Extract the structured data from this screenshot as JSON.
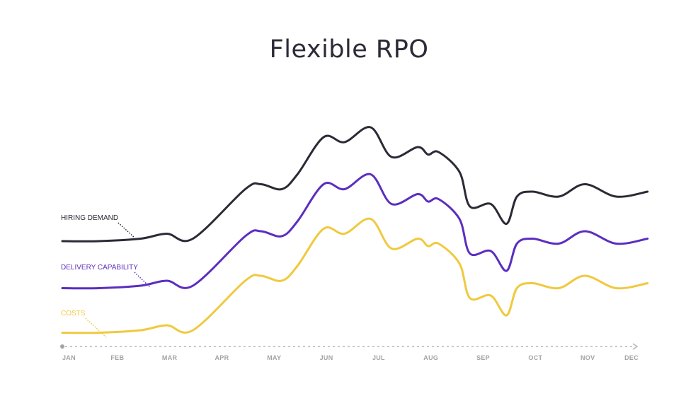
{
  "chart_data": {
    "type": "line",
    "title": "Flexible RPO",
    "categories": [
      "JAN",
      "FEB",
      "MAR",
      "APR",
      "MAY",
      "JUN",
      "JUL",
      "AUG",
      "SEP",
      "OCT",
      "NOV",
      "DEC"
    ],
    "ylim": [
      0,
      100
    ],
    "grid": false,
    "series": [
      {
        "name": "HIRING DEMAND",
        "color": "#2b2a36",
        "x": [
          0,
          0.7,
          1.5,
          2,
          2.5,
          3.5,
          3.8,
          4.2,
          4.5,
          5.0,
          5.4,
          5.9,
          6.3,
          6.8,
          7.0,
          7.2,
          7.6,
          7.8,
          8.2,
          8.5,
          8.7,
          9.0,
          9.5,
          10.0,
          10.6,
          11.2
        ],
        "y": [
          40,
          40,
          41,
          43,
          41,
          61,
          63,
          61,
          67,
          82,
          80,
          86,
          74,
          78,
          75,
          76,
          68,
          54,
          55,
          47,
          58,
          60,
          58,
          63,
          58,
          60
        ]
      },
      {
        "name": "DELIVERY CAPABILITY",
        "color": "#5b2ebf",
        "x": [
          0,
          0.7,
          1.5,
          2,
          2.5,
          3.5,
          3.8,
          4.2,
          4.5,
          5.0,
          5.4,
          5.9,
          6.3,
          6.8,
          7.0,
          7.2,
          7.6,
          7.8,
          8.2,
          8.5,
          8.7,
          9.0,
          9.5,
          10.0,
          10.6,
          11.2
        ],
        "y": [
          21,
          21,
          22,
          24,
          22,
          42,
          44,
          42,
          48,
          63,
          61,
          67,
          55,
          59,
          56,
          57,
          49,
          35,
          36,
          28,
          39,
          41,
          39,
          44,
          39,
          41
        ]
      },
      {
        "name": "COSTS",
        "color": "#f0c93e",
        "x": [
          0,
          0.7,
          1.5,
          2,
          2.5,
          3.5,
          3.8,
          4.2,
          4.5,
          5.0,
          5.4,
          5.9,
          6.3,
          6.8,
          7.0,
          7.2,
          7.6,
          7.8,
          8.2,
          8.5,
          8.7,
          9.0,
          9.5,
          10.0,
          10.6,
          11.2
        ],
        "y": [
          3,
          3,
          4,
          6,
          4,
          24,
          26,
          24,
          30,
          45,
          43,
          49,
          37,
          41,
          38,
          39,
          31,
          17,
          18,
          10,
          21,
          23,
          21,
          26,
          21,
          23
        ]
      }
    ],
    "legend": "inline-left"
  }
}
